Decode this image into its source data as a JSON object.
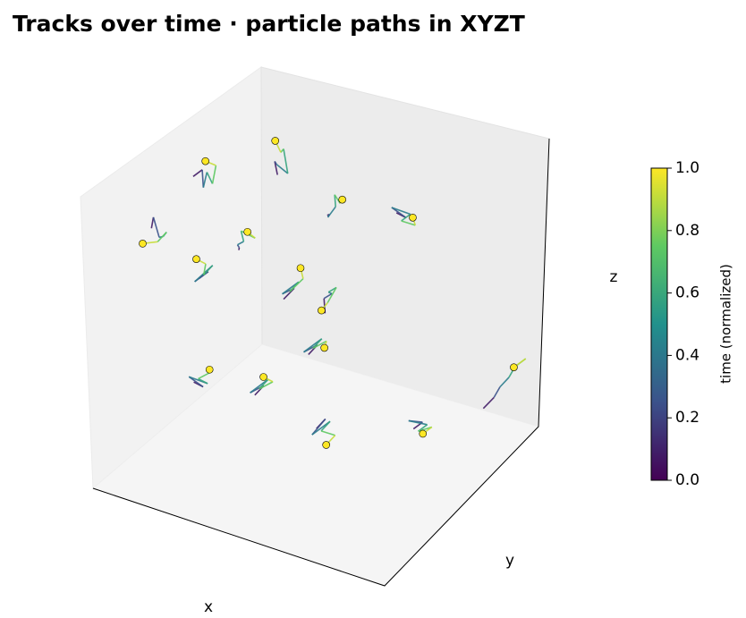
{
  "chart_data": {
    "type": "line3d",
    "title": "Tracks over time · particle paths in XYZT",
    "xlabel": "x",
    "ylabel": "y",
    "zlabel": "z",
    "xlim": [
      0,
      1
    ],
    "ylim": [
      0,
      1
    ],
    "zlim": [
      0,
      1
    ],
    "colormap": "viridis",
    "colorbar": {
      "label": "time (normalized)",
      "lim": [
        0,
        1
      ],
      "ticks": [
        {
          "value": 0,
          "label": "0.0"
        },
        {
          "value": 0.2,
          "label": "0.2"
        },
        {
          "value": 0.4,
          "label": "0.4"
        },
        {
          "value": 0.6,
          "label": "0.6"
        },
        {
          "value": 0.8,
          "label": "0.8"
        },
        {
          "value": 1,
          "label": "1.0"
        }
      ]
    },
    "series": [
      {
        "x": [
          0.08,
          0.1,
          0.12,
          0.11,
          0.14,
          0.13,
          0.1
        ],
        "y": [
          0.5,
          0.52,
          0.49,
          0.53,
          0.51,
          0.55,
          0.54
        ],
        "z": [
          0.86,
          0.88,
          0.84,
          0.87,
          0.85,
          0.89,
          0.9
        ]
      },
      {
        "x": [
          0.05,
          0.04,
          0.07,
          0.06,
          0.09,
          0.07,
          0.03
        ],
        "y": [
          0.3,
          0.33,
          0.31,
          0.35,
          0.32,
          0.3,
          0.28
        ],
        "z": [
          0.77,
          0.79,
          0.74,
          0.72,
          0.76,
          0.73,
          0.72
        ]
      },
      {
        "x": [
          0.3,
          0.28,
          0.31,
          0.33,
          0.3,
          0.32,
          0.29
        ],
        "y": [
          0.62,
          0.64,
          0.6,
          0.63,
          0.66,
          0.61,
          0.63
        ],
        "z": [
          0.88,
          0.91,
          0.93,
          0.89,
          0.95,
          0.97,
          0.99
        ]
      },
      {
        "x": [
          0.42,
          0.44,
          0.41,
          0.45,
          0.43,
          0.46,
          0.48
        ],
        "y": [
          0.7,
          0.68,
          0.72,
          0.7,
          0.73,
          0.71,
          0.69
        ],
        "z": [
          0.74,
          0.76,
          0.72,
          0.78,
          0.8,
          0.79,
          0.82
        ]
      },
      {
        "x": [
          0.6,
          0.62,
          0.59,
          0.63,
          0.61,
          0.64,
          0.62
        ],
        "y": [
          0.8,
          0.82,
          0.79,
          0.83,
          0.81,
          0.84,
          0.86
        ],
        "z": [
          0.76,
          0.74,
          0.78,
          0.75,
          0.73,
          0.71,
          0.72
        ]
      },
      {
        "x": [
          0.2,
          0.22,
          0.19,
          0.23,
          0.21,
          0.24,
          0.22
        ],
        "y": [
          0.55,
          0.52,
          0.56,
          0.53,
          0.55,
          0.58,
          0.57
        ],
        "z": [
          0.62,
          0.65,
          0.63,
          0.67,
          0.69,
          0.66,
          0.68
        ]
      },
      {
        "x": [
          0.15,
          0.17,
          0.14,
          0.18,
          0.16,
          0.15,
          0.13
        ],
        "y": [
          0.4,
          0.42,
          0.39,
          0.43,
          0.41,
          0.44,
          0.42
        ],
        "z": [
          0.58,
          0.6,
          0.57,
          0.62,
          0.59,
          0.61,
          0.63
        ]
      },
      {
        "x": [
          0.35,
          0.37,
          0.34,
          0.38,
          0.36,
          0.39,
          0.37
        ],
        "y": [
          0.55,
          0.58,
          0.56,
          0.59,
          0.57,
          0.6,
          0.62
        ],
        "z": [
          0.5,
          0.53,
          0.51,
          0.55,
          0.52,
          0.56,
          0.58
        ]
      },
      {
        "x": [
          0.45,
          0.43,
          0.47,
          0.44,
          0.48,
          0.46,
          0.45
        ],
        "y": [
          0.62,
          0.65,
          0.63,
          0.66,
          0.64,
          0.62,
          0.6
        ],
        "z": [
          0.45,
          0.48,
          0.52,
          0.5,
          0.54,
          0.49,
          0.47
        ]
      },
      {
        "x": [
          0.18,
          0.2,
          0.17,
          0.21,
          0.19,
          0.22,
          0.2
        ],
        "y": [
          0.3,
          0.32,
          0.29,
          0.33,
          0.31,
          0.34,
          0.36
        ],
        "z": [
          0.28,
          0.26,
          0.3,
          0.27,
          0.29,
          0.31,
          0.3
        ]
      },
      {
        "x": [
          0.3,
          0.32,
          0.29,
          0.33,
          0.31,
          0.34,
          0.32
        ],
        "y": [
          0.45,
          0.47,
          0.44,
          0.48,
          0.46,
          0.49,
          0.47
        ],
        "z": [
          0.2,
          0.23,
          0.21,
          0.25,
          0.22,
          0.24,
          0.26
        ]
      },
      {
        "x": [
          0.4,
          0.42,
          0.39,
          0.43,
          0.41,
          0.44,
          0.42
        ],
        "y": [
          0.6,
          0.62,
          0.59,
          0.63,
          0.61,
          0.64,
          0.66
        ],
        "z": [
          0.3,
          0.33,
          0.31,
          0.35,
          0.32,
          0.34,
          0.3
        ]
      },
      {
        "x": [
          0.48,
          0.5,
          0.47,
          0.51,
          0.49,
          0.52,
          0.5
        ],
        "y": [
          0.5,
          0.52,
          0.49,
          0.53,
          0.51,
          0.54,
          0.52
        ],
        "z": [
          0.12,
          0.15,
          0.1,
          0.14,
          0.11,
          0.09,
          0.06
        ]
      },
      {
        "x": [
          0.72,
          0.74,
          0.71,
          0.75,
          0.73,
          0.76,
          0.74
        ],
        "y": [
          0.66,
          0.68,
          0.65,
          0.69,
          0.67,
          0.7,
          0.68
        ],
        "z": [
          0.12,
          0.14,
          0.15,
          0.13,
          0.11,
          0.12,
          0.1
        ]
      },
      {
        "x": [
          0.85,
          0.87,
          0.88,
          0.9,
          0.91,
          0.93,
          0.9
        ],
        "y": [
          0.85,
          0.88,
          0.9,
          0.92,
          0.94,
          0.97,
          0.95
        ],
        "z": [
          0.14,
          0.17,
          0.2,
          0.23,
          0.26,
          0.28,
          0.25
        ]
      }
    ]
  }
}
